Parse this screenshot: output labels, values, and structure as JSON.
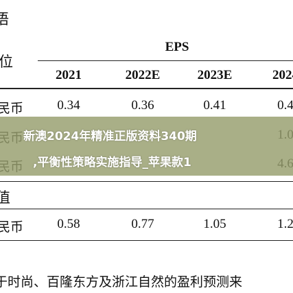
{
  "header": {
    "title": "语"
  },
  "table": {
    "unit_label": "位",
    "group_header": "EPS",
    "columns": [
      "2021",
      "2022E",
      "2023E",
      "2024"
    ],
    "rows": [
      [
        "民币",
        "0.34",
        "0.36",
        "0.41",
        "0.4"
      ],
      [
        "民币",
        "",
        "",
        "",
        "1.0"
      ],
      [
        "民币",
        "",
        "",
        "",
        "4.6"
      ]
    ],
    "section_label": "值",
    "section_rows": [
      [
        "民币",
        "0.58",
        "0.77",
        "1.05",
        "1.2"
      ]
    ]
  },
  "footer": {
    "text": "于时尚、百隆东方及浙江自然的盈利预测来"
  },
  "overlay": {
    "line1": "新澳2024年精准正版资料340期",
    "line2": ",平衡性策略实施指导_苹果款1"
  }
}
